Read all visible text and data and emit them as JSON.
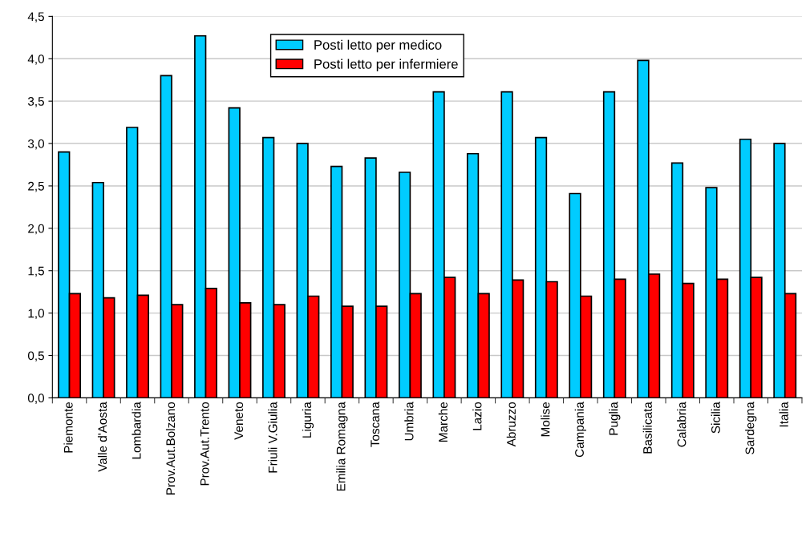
{
  "chart_data": {
    "type": "bar",
    "categories": [
      "Piemonte",
      "Valle d'Aosta",
      "Lombardia",
      "Prov.Aut.Bolzano",
      "Prov.Aut.Trento",
      "Veneto",
      "Friuli V.Giulia",
      "Liguria",
      "Emilia Romagna",
      "Toscana",
      "Umbria",
      "Marche",
      "Lazio",
      "Abruzzo",
      "Molise",
      "Campania",
      "Puglia",
      "Basilicata",
      "Calabria",
      "Sicilia",
      "Sardegna",
      "Italia"
    ],
    "series": [
      {
        "name": "Posti letto per medico",
        "color": "#00ccff",
        "values": [
          2.9,
          2.54,
          3.19,
          3.8,
          4.27,
          3.42,
          3.07,
          3.0,
          2.73,
          2.83,
          2.66,
          3.61,
          2.88,
          3.61,
          3.07,
          2.41,
          3.61,
          3.98,
          2.77,
          2.48,
          3.05,
          3.0
        ]
      },
      {
        "name": "Posti letto per infermiere",
        "color": "#ff0000",
        "values": [
          1.23,
          1.18,
          1.21,
          1.1,
          1.29,
          1.12,
          1.1,
          1.2,
          1.08,
          1.08,
          1.23,
          1.42,
          1.23,
          1.39,
          1.37,
          1.2,
          1.4,
          1.46,
          1.35,
          1.4,
          1.42,
          1.23
        ]
      }
    ],
    "ylim": [
      0,
      4.5
    ],
    "yticks": [
      {
        "value": 0,
        "label": "0,0"
      },
      {
        "value": 0.5,
        "label": "0,5"
      },
      {
        "value": 1,
        "label": "1,0"
      },
      {
        "value": 1.5,
        "label": "1,5"
      },
      {
        "value": 2,
        "label": "2,0"
      },
      {
        "value": 2.5,
        "label": "2,5"
      },
      {
        "value": 3,
        "label": "3,0"
      },
      {
        "value": 3.5,
        "label": "3,5"
      },
      {
        "value": 4,
        "label": "4,0"
      },
      {
        "value": 4.5,
        "label": "4,5"
      }
    ],
    "grid": "y",
    "legend": "top"
  }
}
